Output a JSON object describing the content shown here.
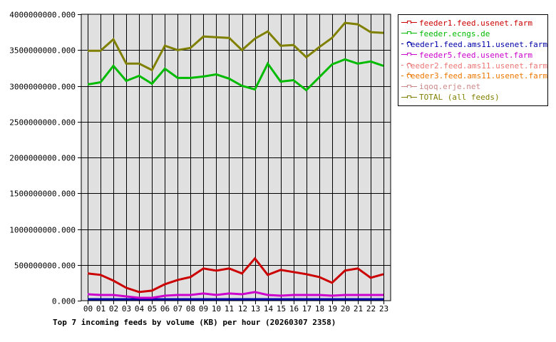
{
  "chart_data": {
    "type": "line",
    "title": "Top 7 incoming feeds by volume (KB) per hour (20260307 2358)",
    "xlabel": "",
    "ylabel": "",
    "ylim": [
      0,
      4000000000
    ],
    "grid": true,
    "legend_position": "right",
    "y_ticks": [
      "0.000",
      "500000000.000",
      "1000000000.000",
      "1500000000.000",
      "2000000000.000",
      "2500000000.000",
      "3000000000.000",
      "3500000000.000",
      "4000000000.000"
    ],
    "categories": [
      "00",
      "01",
      "02",
      "03",
      "04",
      "05",
      "06",
      "07",
      "08",
      "09",
      "10",
      "11",
      "12",
      "13",
      "14",
      "15",
      "16",
      "17",
      "18",
      "19",
      "20",
      "21",
      "22",
      "23"
    ],
    "series": [
      {
        "name": "feeder1.feed.usenet.farm",
        "color": "#cc0000",
        "values": [
          380000000,
          360000000,
          280000000,
          180000000,
          120000000,
          140000000,
          230000000,
          290000000,
          330000000,
          450000000,
          420000000,
          450000000,
          380000000,
          590000000,
          360000000,
          430000000,
          400000000,
          370000000,
          330000000,
          250000000,
          420000000,
          450000000,
          320000000,
          370000000
        ]
      },
      {
        "name": "feeder.ecngs.de",
        "color": "#00bb00",
        "values": [
          3020000000,
          3050000000,
          3280000000,
          3070000000,
          3140000000,
          3030000000,
          3240000000,
          3110000000,
          3110000000,
          3130000000,
          3160000000,
          3100000000,
          3000000000,
          2950000000,
          3310000000,
          3060000000,
          3080000000,
          2940000000,
          3120000000,
          3300000000,
          3370000000,
          3310000000,
          3340000000,
          3280000000
        ]
      },
      {
        "name": "feeder1.feed.ams11.usenet.farm",
        "color": "#0000aa",
        "values": [
          0,
          0,
          0,
          20000000,
          0,
          0,
          0,
          0,
          0,
          0,
          0,
          0,
          0,
          0,
          0,
          0,
          0,
          0,
          0,
          0,
          20000000,
          0,
          0,
          20000000
        ]
      },
      {
        "name": "feeder5.feed.usenet.farm",
        "color": "#cc00cc",
        "values": [
          90000000,
          80000000,
          80000000,
          60000000,
          40000000,
          40000000,
          70000000,
          80000000,
          80000000,
          100000000,
          80000000,
          100000000,
          90000000,
          120000000,
          80000000,
          70000000,
          80000000,
          80000000,
          80000000,
          70000000,
          80000000,
          80000000,
          80000000,
          80000000
        ]
      },
      {
        "name": "feeder2.feed.ams11.usenet.farm",
        "color": "#ee7777",
        "values": [
          0,
          0,
          0,
          0,
          0,
          0,
          0,
          0,
          0,
          0,
          10000000,
          10000000,
          0,
          0,
          0,
          0,
          0,
          0,
          0,
          0,
          0,
          0,
          0,
          0
        ]
      },
      {
        "name": "feeder3.feed.ams11.usenet.farm",
        "color": "#ee7700",
        "values": [
          0,
          0,
          0,
          0,
          0,
          0,
          0,
          0,
          0,
          0,
          0,
          0,
          0,
          0,
          0,
          0,
          0,
          0,
          0,
          0,
          0,
          0,
          0,
          0
        ]
      },
      {
        "name": "iqoq.erje.net",
        "color": "#cc8888",
        "values": [
          0,
          0,
          0,
          0,
          0,
          0,
          0,
          0,
          0,
          0,
          0,
          0,
          0,
          0,
          0,
          0,
          0,
          0,
          0,
          0,
          0,
          0,
          0,
          0
        ]
      },
      {
        "name": "TOTAL (all feeds)",
        "color": "#808000",
        "values": [
          3490000000,
          3490000000,
          3650000000,
          3310000000,
          3310000000,
          3220000000,
          3560000000,
          3500000000,
          3530000000,
          3690000000,
          3680000000,
          3670000000,
          3500000000,
          3660000000,
          3760000000,
          3560000000,
          3570000000,
          3400000000,
          3540000000,
          3670000000,
          3880000000,
          3860000000,
          3750000000,
          3740000000
        ]
      }
    ]
  },
  "legend": {
    "items": [
      {
        "label": "feeder1.feed.usenet.farm",
        "color": "#cc0000"
      },
      {
        "label": "feeder.ecngs.de",
        "color": "#00bb00"
      },
      {
        "label": "feeder1.feed.ams11.usenet.farm",
        "color": "#0000aa"
      },
      {
        "label": "feeder5.feed.usenet.farm",
        "color": "#cc00cc"
      },
      {
        "label": "feeder2.feed.ams11.usenet.farm",
        "color": "#ee7777"
      },
      {
        "label": "feeder3.feed.ams11.usenet.farm",
        "color": "#ee7700"
      },
      {
        "label": "iqoq.erje.net",
        "color": "#cc8888"
      },
      {
        "label": "TOTAL (all feeds)",
        "color": "#808000"
      }
    ]
  },
  "colors": {
    "plot_background": "#e0e0e0",
    "grid": "#000000"
  }
}
